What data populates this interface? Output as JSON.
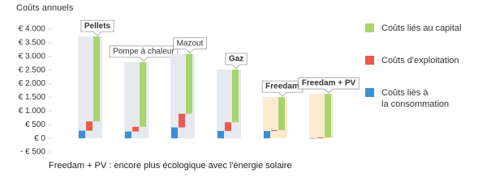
{
  "chart_data": {
    "type": "floating-stack",
    "y_label": "Coûts annuels",
    "annotation": "Freedam + PV : encore plus écologique avec l'énergie solaire",
    "categories": [
      "Pellets",
      "Pompe à chaleur",
      "Mazout",
      "Gaz",
      "Freedam",
      "Freedam + PV"
    ],
    "series": [
      {
        "name": "Coûts liés à\nla consommation",
        "color": "#3b8fd6",
        "values": [
          280,
          250,
          400,
          270,
          270,
          0
        ]
      },
      {
        "name": "Coûts d'exploitation",
        "color": "#ec5a4f",
        "values": [
          340,
          170,
          500,
          320,
          30,
          30
        ]
      },
      {
        "name": "Coûts liés au capital",
        "color": "#a8d46f",
        "values": [
          3110,
          2370,
          2190,
          1930,
          1210,
          1600
        ]
      }
    ],
    "background_colors": [
      "#e6eaf0",
      "#e6eaf0",
      "#e6eaf0",
      "#e6eaf0",
      "#fdebcf",
      "#fdebcf"
    ],
    "ylim": [
      -500,
      4000
    ],
    "yticks": [
      {
        "value": 4000,
        "label": "€ 4.000"
      },
      {
        "value": 3500,
        "label": "€ 3.500"
      },
      {
        "value": 3000,
        "label": "€ 3.000"
      },
      {
        "value": 2500,
        "label": "€ 2.500"
      },
      {
        "value": 2000,
        "label": "€ 2.000"
      },
      {
        "value": 1500,
        "label": "€ 1.500"
      },
      {
        "value": 1000,
        "label": "€ 1.000"
      },
      {
        "value": 500,
        "label": "€ 500"
      },
      {
        "value": 0,
        "label": "€ 0"
      },
      {
        "value": -500,
        "label": "- € 500"
      }
    ]
  }
}
